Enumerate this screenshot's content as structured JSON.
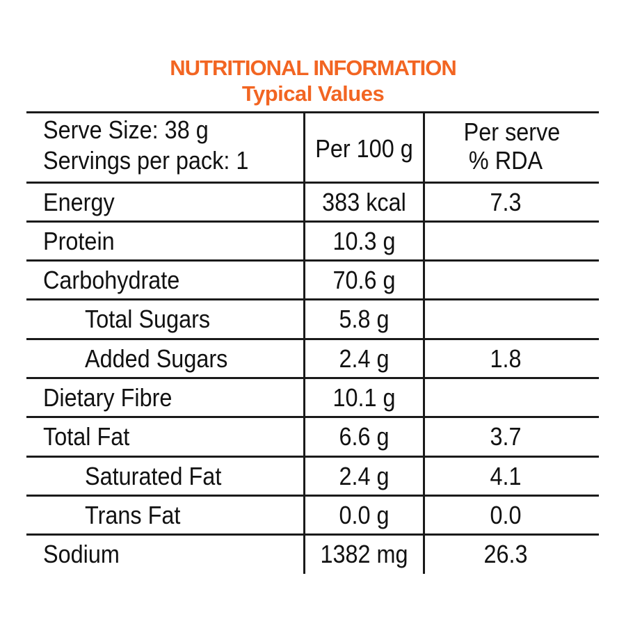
{
  "title": "NUTRITIONAL INFORMATION",
  "subtitle": "Typical Values",
  "header": {
    "serve_size": "Serve Size: 38 g",
    "servings": "Servings per pack: 1",
    "col_per100": "Per 100 g",
    "col_perserve_1": "Per serve",
    "col_perserve_2": "% RDA"
  },
  "rows": [
    {
      "label": "Energy",
      "per100": "383 kcal",
      "rda": "7.3"
    },
    {
      "label": "Protein",
      "per100": "10.3 g",
      "rda": ""
    },
    {
      "label": "Carbohydrate",
      "per100": "70.6 g",
      "rda": ""
    },
    {
      "label": "Total Sugars",
      "per100": "5.8 g",
      "rda": ""
    },
    {
      "label": "Added Sugars",
      "per100": "2.4 g",
      "rda": "1.8"
    },
    {
      "label": "Dietary Fibre",
      "per100": "10.1 g",
      "rda": ""
    },
    {
      "label": "Total Fat",
      "per100": "6.6 g",
      "rda": "3.7"
    },
    {
      "label": "Saturated Fat",
      "per100": "2.4 g",
      "rda": "4.1"
    },
    {
      "label": "Trans Fat",
      "per100": "0.0 g",
      "rda": "0.0"
    },
    {
      "label": "Sodium",
      "per100": "1382 mg",
      "rda": "26.3"
    }
  ],
  "colors": {
    "accent": "#f26522",
    "lines": "#1a1a1a"
  }
}
